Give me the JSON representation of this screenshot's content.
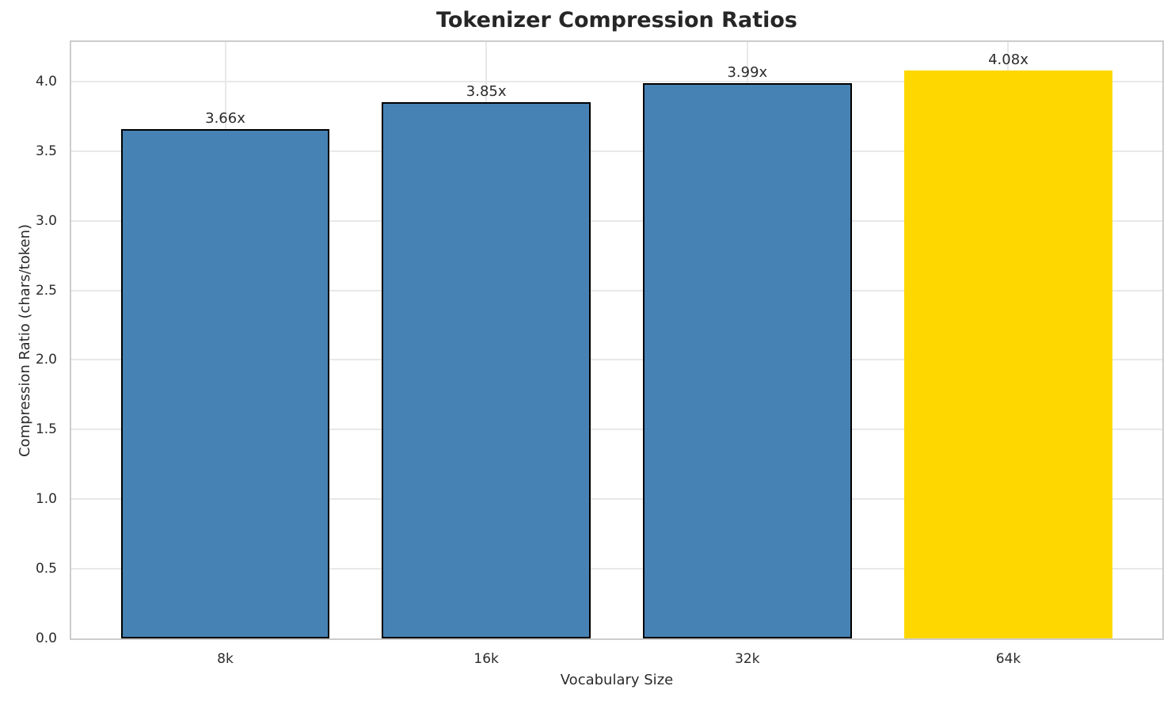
{
  "chart_data": {
    "type": "bar",
    "title": "Tokenizer Compression Ratios",
    "xlabel": "Vocabulary Size",
    "ylabel": "Compression Ratio (chars/token)",
    "categories": [
      "8k",
      "16k",
      "32k",
      "64k"
    ],
    "values": [
      3.66,
      3.85,
      3.99,
      4.08
    ],
    "bar_labels": [
      "3.66x",
      "3.85x",
      "3.99x",
      "4.08x"
    ],
    "bar_colors": [
      "#4682B4",
      "#4682B4",
      "#4682B4",
      "#FFD700"
    ],
    "bar_edge_colors": [
      "#000000",
      "#000000",
      "#000000",
      "none"
    ],
    "highlighted_category": "64k",
    "yticks": [
      0.0,
      0.5,
      1.0,
      1.5,
      2.0,
      2.5,
      3.0,
      3.5,
      4.0
    ],
    "ytick_labels": [
      "0.0",
      "0.5",
      "1.0",
      "1.5",
      "2.0",
      "2.5",
      "3.0",
      "3.5",
      "4.0"
    ],
    "ylim": [
      0,
      4.284
    ],
    "grid": true,
    "legend_position": "none",
    "colors": {
      "text": "#262626",
      "grid": "#e8e8e8",
      "spine": "#cccccc",
      "background": "#ffffff"
    }
  }
}
